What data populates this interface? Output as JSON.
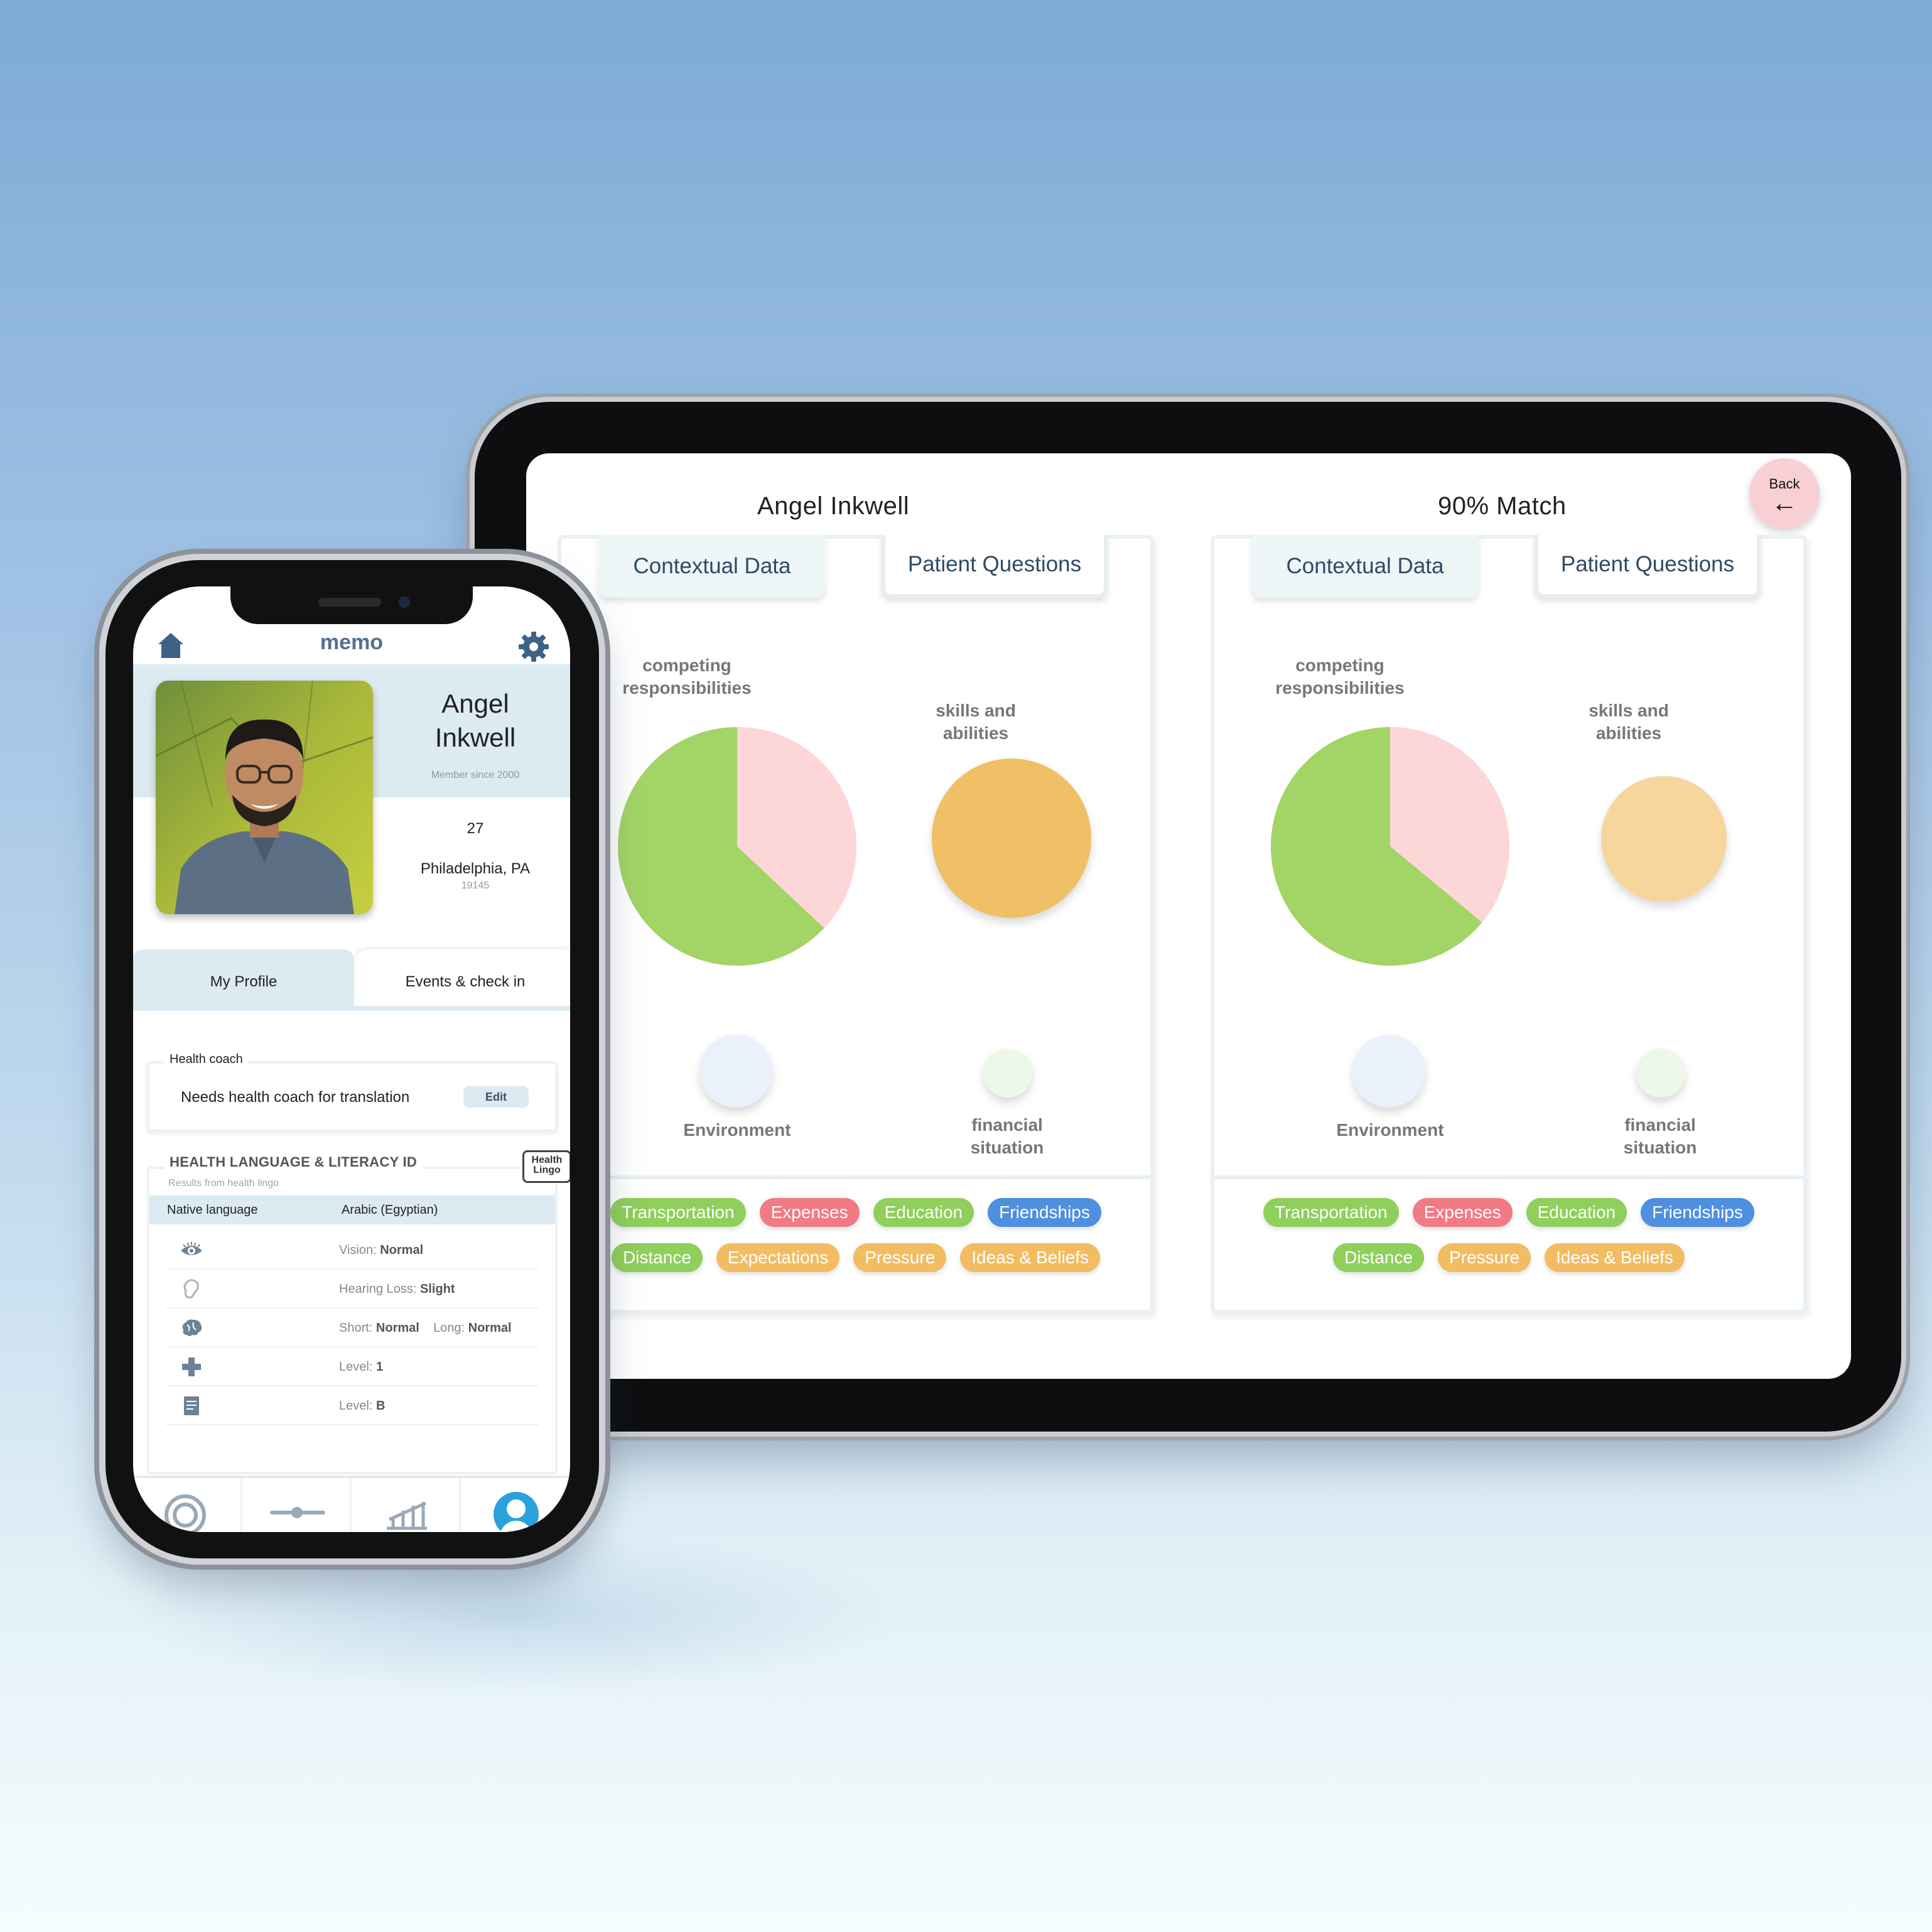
{
  "tablet": {
    "left_name": "Angel Inkwell",
    "right_match": "90% Match",
    "back_label": "Back",
    "back_arrow": "←",
    "panels": [
      {
        "tab_contextual": "Contextual Data",
        "tab_questions": "Patient Questions",
        "label_competing": "competing responsibilities",
        "label_skills": "skills and abilities",
        "label_environment": "Environment",
        "label_financial": "financial situation",
        "pie_fraction_pink": 0.37,
        "chips_row1": [
          {
            "text": "Transportation",
            "color": "#8fcf5c"
          },
          {
            "text": "Expenses",
            "color": "#f27a84"
          },
          {
            "text": "Education",
            "color": "#8fcf5c"
          },
          {
            "text": "Friendships",
            "color": "#4f8fe0"
          }
        ],
        "chips_row2": [
          {
            "text": "Distance",
            "color": "#8fcf5c"
          },
          {
            "text": "Expectations",
            "color": "#f2bd62"
          },
          {
            "text": "Pressure",
            "color": "#f2bd62"
          },
          {
            "text": "Ideas & Beliefs",
            "color": "#f2bd62"
          }
        ]
      },
      {
        "tab_contextual": "Contextual Data",
        "tab_questions": "Patient Questions",
        "label_competing": "competing responsibilities",
        "label_skills": "skills and abilities",
        "label_environment": "Environment",
        "label_financial": "financial situation",
        "pie_fraction_pink": 0.36,
        "chips_row1": [
          {
            "text": "Transportation",
            "color": "#8fcf5c"
          },
          {
            "text": "Expenses",
            "color": "#f27a84"
          },
          {
            "text": "Education",
            "color": "#8fcf5c"
          },
          {
            "text": "Friendships",
            "color": "#4f8fe0"
          }
        ],
        "chips_row2": [
          {
            "text": "Distance",
            "color": "#8fcf5c"
          },
          {
            "text": "Pressure",
            "color": "#f2bd62"
          },
          {
            "text": "Ideas & Beliefs",
            "color": "#f2bd62"
          }
        ]
      }
    ]
  },
  "phone": {
    "app_name": "memo",
    "profile": {
      "first_name": "Angel",
      "last_name": "Inkwell",
      "member_since": "Member since 2000",
      "age": "27",
      "city": "Philadelphia, PA",
      "zip": "19145"
    },
    "tabs": {
      "my_profile": "My Profile",
      "events": "Events & check in"
    },
    "health_coach": {
      "title": "Health coach",
      "value": "Needs health coach for translation",
      "edit_label": "Edit"
    },
    "literacy": {
      "title": "HEALTH LANGUAGE & LITERACY ID",
      "subtitle": "Results from health lingo",
      "logo_line1": "Health",
      "logo_line2": "Lingo",
      "native_key": "Native language",
      "native_value": "Arabic (Egyptian)",
      "rows": [
        {
          "icon": "eye-icon",
          "prefix": "Vision: ",
          "value": "Normal",
          "prefix2": "",
          "value2": ""
        },
        {
          "icon": "ear-icon",
          "prefix": "Hearing Loss: ",
          "value": "Slight",
          "prefix2": "",
          "value2": ""
        },
        {
          "icon": "brain-icon",
          "prefix": "Short: ",
          "value": "Normal",
          "prefix2": "Long: ",
          "value2": "Normal"
        },
        {
          "icon": "medical-cross-icon",
          "prefix": "Level: ",
          "value": "1",
          "prefix2": "",
          "value2": ""
        },
        {
          "icon": "document-icon",
          "prefix": "Level: ",
          "value": "B",
          "prefix2": "",
          "value2": ""
        }
      ]
    },
    "accent": "#2aa3dc"
  }
}
